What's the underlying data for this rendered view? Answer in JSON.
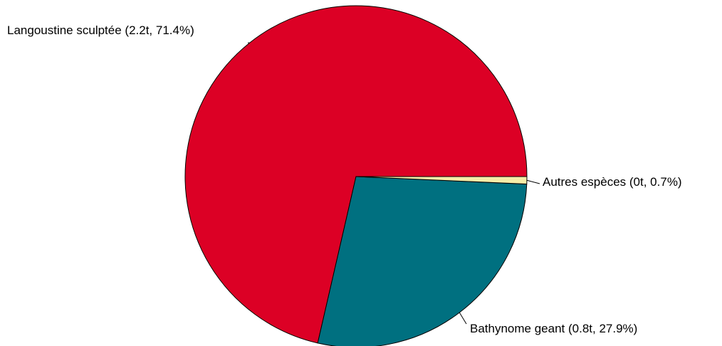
{
  "chart_data": {
    "type": "pie",
    "title": "",
    "slices": [
      {
        "label": "Langoustine sculptée (2.2t, 71.4%)",
        "value": 71.4,
        "color": "#DC0025"
      },
      {
        "label": "Bathynome geant (0.8t, 27.9%)",
        "value": 27.9,
        "color": "#007080"
      },
      {
        "label": "Autres espèces (0t, 0.7%)",
        "value": 0.7,
        "color": "#F5EDA8"
      }
    ],
    "start_angle_deg": 0,
    "direction": "counter-clockwise",
    "slice_border_color": "#000000",
    "legend": "none"
  }
}
